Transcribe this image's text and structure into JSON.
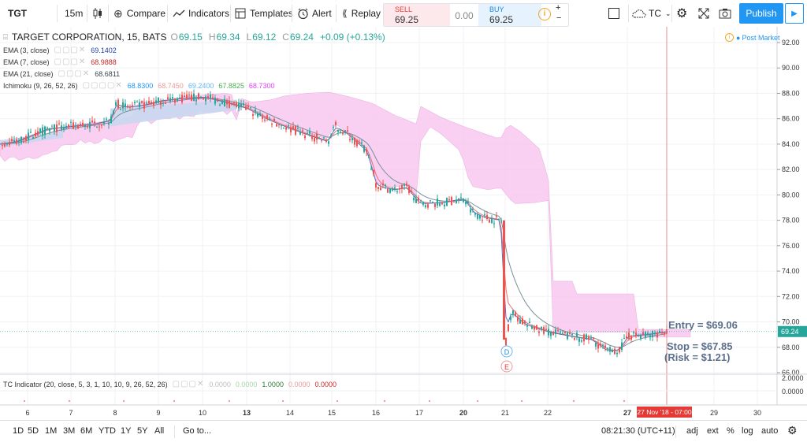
{
  "toolbar": {
    "symbol": "TGT",
    "interval": "15m",
    "compare": "Compare",
    "indicators": "Indicators",
    "templates": "Templates",
    "alert": "Alert",
    "replay": "Replay",
    "sell_label": "SELL",
    "sell_price": "69.25",
    "spread": "0.00",
    "buy_label": "BUY",
    "buy_price": "69.25",
    "info": "i",
    "plus": "+",
    "minus": "−",
    "tc_label": "TC",
    "publish": "Publish"
  },
  "header": {
    "name": "TARGET CORPORATION, 15, BATS",
    "o_label": "O",
    "o": "69.15",
    "h_label": "H",
    "h": "69.34",
    "l_label": "L",
    "l": "69.12",
    "c_label": "C",
    "c": "69.24",
    "change": "+0.09 (+0.13%)",
    "post_market": "Post Market"
  },
  "indicators": [
    {
      "label": "EMA (3, close)",
      "value": "69.1402",
      "color": "#1f3fb0"
    },
    {
      "label": "EMA (7, close)",
      "value": "68.9888",
      "color": "#c62828"
    },
    {
      "label": "EMA (21, close)",
      "value": "68.6811",
      "color": "#37474f"
    }
  ],
  "ichimoku": {
    "label": "Ichimoku (9, 26, 52, 26)",
    "values": [
      {
        "v": "68.8300",
        "color": "#2196f3"
      },
      {
        "v": "68.7450",
        "color": "#ef9a9a"
      },
      {
        "v": "69.2400",
        "color": "#64b5f6"
      },
      {
        "v": "67.8825",
        "color": "#4caf50"
      },
      {
        "v": "68.7300",
        "color": "#e040fb"
      }
    ]
  },
  "tc_indicator": {
    "label": "TC Indicator (20, close, 5, 3, 1, 10, 10, 9, 26, 52, 26)",
    "values": [
      {
        "v": "0.0000",
        "color": "#bdbdbd"
      },
      {
        "v": "0.0000",
        "color": "#a5d6a7"
      },
      {
        "v": "1.0000",
        "color": "#2e7d32"
      },
      {
        "v": "0.0000",
        "color": "#ef9a9a"
      },
      {
        "v": "0.0000",
        "color": "#c62828"
      }
    ],
    "axis_labels": [
      "2.0000",
      "0.0000"
    ]
  },
  "annotations": {
    "entry": "Entry = $69.06",
    "stop": "Stop = $67.85",
    "risk": "(Risk = $1.21)"
  },
  "markers": {
    "d": "D",
    "e": "E"
  },
  "price_axis": {
    "labels": [
      "92.00",
      "90.00",
      "88.00",
      "86.00",
      "84.00",
      "82.00",
      "80.00",
      "78.00",
      "76.00",
      "74.00",
      "72.00",
      "70.00",
      "68.00",
      "66.00"
    ],
    "last_price": "69.24"
  },
  "time_axis": {
    "labels": [
      {
        "t": "6",
        "bold": false
      },
      {
        "t": "7",
        "bold": false
      },
      {
        "t": "8",
        "bold": false
      },
      {
        "t": "9",
        "bold": false
      },
      {
        "t": "10",
        "bold": false
      },
      {
        "t": "13",
        "bold": true
      },
      {
        "t": "14",
        "bold": false
      },
      {
        "t": "15",
        "bold": false
      },
      {
        "t": "16",
        "bold": false
      },
      {
        "t": "17",
        "bold": false
      },
      {
        "t": "20",
        "bold": true
      },
      {
        "t": "21",
        "bold": false
      },
      {
        "t": "22",
        "bold": false
      },
      {
        "t": "27",
        "bold": true
      },
      {
        "t": "29",
        "bold": false
      },
      {
        "t": "30",
        "bold": false
      }
    ],
    "cursor_time": "27 Nov '18 - 07:00"
  },
  "bottom": {
    "ranges": [
      "1D",
      "5D",
      "1M",
      "3M",
      "6M",
      "YTD",
      "1Y",
      "5Y",
      "All"
    ],
    "goto": "Go to...",
    "clock": "08:21:30 (UTC+11)",
    "adj": "adj",
    "ext": "ext",
    "pct": "%",
    "log": "log",
    "auto": "auto"
  },
  "colors": {
    "up": "#26a69a",
    "down": "#ef5350",
    "cloud_bear": "#f8c8ef",
    "cloud_bull": "#c9d7f0",
    "accent": "#2196f3"
  },
  "chart_data": {
    "type": "candlestick",
    "symbol": "TGT",
    "interval": "15m",
    "y_range": [
      65,
      93
    ],
    "close_path": [
      [
        "6",
        84.2
      ],
      [
        "7",
        85.2
      ],
      [
        "8",
        85.8
      ],
      [
        "8",
        87.2
      ],
      [
        "9",
        87.4
      ],
      [
        "10",
        87.7
      ],
      [
        "13",
        86.8
      ],
      [
        "14",
        85.4
      ],
      [
        "15",
        84.3
      ],
      [
        "15",
        85.5
      ],
      [
        "16",
        83.8
      ],
      [
        "16",
        80.6
      ],
      [
        "17",
        80.4
      ],
      [
        "17",
        79.4
      ],
      [
        "20",
        79.2
      ],
      [
        "20",
        78.1
      ],
      [
        "21",
        78.0
      ],
      [
        "21",
        68.6
      ],
      [
        "21",
        70.2
      ],
      [
        "22",
        69.6
      ],
      [
        "22",
        68.8
      ],
      [
        "27",
        67.8
      ],
      [
        "27",
        69.0
      ],
      [
        "27",
        69.24
      ]
    ],
    "last_close": 69.24
  }
}
